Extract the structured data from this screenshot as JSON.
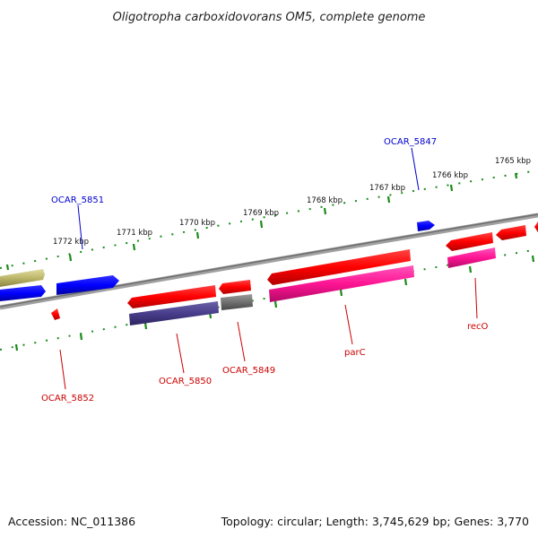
{
  "title": "Oligotropha carboxidovorans OM5, complete genome",
  "footer": {
    "accession": "Accession: NC_011386",
    "summary": "Topology: circular; Length: 3,745,629 bp; Genes: 3,770"
  },
  "colors": {
    "backbone": "#8a8a8a",
    "ticks": "#1a8a1a",
    "blue_label": "#0000cc",
    "red_label": "#cc0000"
  },
  "ticks": [
    {
      "label": "1765 kbp"
    },
    {
      "label": "1766 kbp"
    },
    {
      "label": "1767 kbp"
    },
    {
      "label": "1768 kbp"
    },
    {
      "label": "1769 kbp"
    },
    {
      "label": "1770 kbp"
    },
    {
      "label": "1771 kbp"
    },
    {
      "label": "1772 kbp"
    }
  ],
  "gene_labels": [
    {
      "name": "ocar-5847-label",
      "text": "OCAR_5847",
      "color": "#0000cc"
    },
    {
      "name": "ocar-5851-label",
      "text": "OCAR_5851",
      "color": "#0000cc"
    },
    {
      "name": "ocar-5852-label",
      "text": "OCAR_5852",
      "color": "#cc0000"
    },
    {
      "name": "ocar-5850-label",
      "text": "OCAR_5850",
      "color": "#cc0000"
    },
    {
      "name": "ocar-5849-label",
      "text": "OCAR_5849",
      "color": "#cc0000"
    },
    {
      "name": "parc-label",
      "text": "parC",
      "color": "#cc0000"
    },
    {
      "name": "reco-label",
      "text": "recO",
      "color": "#cc0000"
    }
  ]
}
